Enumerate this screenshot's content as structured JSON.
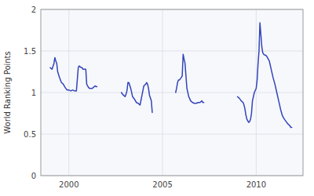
{
  "chart_data": {
    "type": "line",
    "ylabel": "World Ranking Points",
    "color": "#3344bb",
    "grid": true,
    "xlim": [
      1998.5,
      2012.5
    ],
    "xticks": [
      2000,
      2005,
      2010
    ],
    "ylim": [
      0,
      2
    ],
    "yticks": [
      0,
      0.5,
      1,
      1.5,
      2
    ],
    "series": [
      {
        "x": [
          1999.0,
          1999.1,
          1999.2,
          1999.25,
          1999.3,
          1999.35,
          1999.4,
          1999.5,
          1999.6,
          1999.7,
          1999.8,
          1999.9,
          2000.0,
          2000.1,
          2000.2,
          2000.3,
          2000.4,
          2000.5,
          2000.55,
          2000.6,
          2000.65,
          2000.7,
          2000.75,
          2000.8,
          2000.85,
          2000.9,
          2000.95,
          2001.0,
          2001.05,
          2001.1,
          2001.15,
          2001.2,
          2001.25,
          2001.3,
          2001.4,
          2001.45,
          2001.5
        ],
        "values": [
          1.3,
          1.28,
          1.35,
          1.42,
          1.38,
          1.35,
          1.25,
          1.18,
          1.12,
          1.1,
          1.06,
          1.03,
          1.03,
          1.02,
          1.03,
          1.02,
          1.02,
          1.3,
          1.32,
          1.31,
          1.3,
          1.3,
          1.28,
          1.28,
          1.28,
          1.28,
          1.1,
          1.08,
          1.06,
          1.05,
          1.05,
          1.05,
          1.05,
          1.06,
          1.08,
          1.07,
          1.07
        ]
      },
      {
        "x": [
          2002.8,
          2002.9,
          2003.0,
          2003.05,
          2003.1,
          2003.15,
          2003.2,
          2003.3,
          2003.4,
          2003.5,
          2003.6,
          2003.7,
          2003.75,
          2003.8,
          2004.0,
          2004.1,
          2004.15,
          2004.2,
          2004.25,
          2004.3,
          2004.4,
          2004.45
        ],
        "values": [
          1.0,
          0.97,
          0.95,
          0.98,
          1.02,
          1.12,
          1.12,
          1.05,
          0.95,
          0.92,
          0.88,
          0.87,
          0.86,
          0.85,
          1.08,
          1.1,
          1.12,
          1.1,
          1.05,
          0.97,
          0.9,
          0.76
        ]
      },
      {
        "x": [
          2005.7,
          2005.75,
          2005.8,
          2005.85,
          2005.9,
          2006.0,
          2006.05,
          2006.1,
          2006.15,
          2006.2,
          2006.25,
          2006.3,
          2006.4,
          2006.5,
          2006.6,
          2006.7,
          2006.8,
          2006.9,
          2007.0,
          2007.1,
          2007.15,
          2007.2
        ],
        "values": [
          1.0,
          1.05,
          1.12,
          1.15,
          1.15,
          1.18,
          1.2,
          1.46,
          1.4,
          1.35,
          1.2,
          1.05,
          0.95,
          0.9,
          0.88,
          0.87,
          0.87,
          0.88,
          0.88,
          0.9,
          0.88,
          0.88
        ]
      },
      {
        "x": [
          2009.0,
          2009.1,
          2009.2,
          2009.3,
          2009.35,
          2009.4,
          2009.45,
          2009.5,
          2009.55,
          2009.6,
          2009.65,
          2009.7,
          2009.75,
          2009.8,
          2009.85,
          2009.9,
          2010.0,
          2010.05,
          2010.1,
          2010.15,
          2010.2,
          2010.25,
          2010.3,
          2010.35,
          2010.4,
          2010.45,
          2010.5,
          2010.55,
          2010.6,
          2010.65,
          2010.7,
          2010.8,
          2010.9,
          2011.0,
          2011.1,
          2011.2,
          2011.3,
          2011.4,
          2011.5,
          2011.6,
          2011.7,
          2011.8,
          2011.85,
          2011.9
        ],
        "values": [
          0.95,
          0.93,
          0.9,
          0.88,
          0.85,
          0.8,
          0.73,
          0.68,
          0.66,
          0.64,
          0.65,
          0.68,
          0.75,
          0.9,
          0.95,
          1.0,
          1.05,
          1.15,
          1.35,
          1.5,
          1.84,
          1.7,
          1.55,
          1.48,
          1.46,
          1.45,
          1.45,
          1.44,
          1.42,
          1.4,
          1.38,
          1.28,
          1.18,
          1.1,
          1.0,
          0.9,
          0.8,
          0.72,
          0.68,
          0.65,
          0.62,
          0.6,
          0.58,
          0.58
        ]
      }
    ]
  }
}
